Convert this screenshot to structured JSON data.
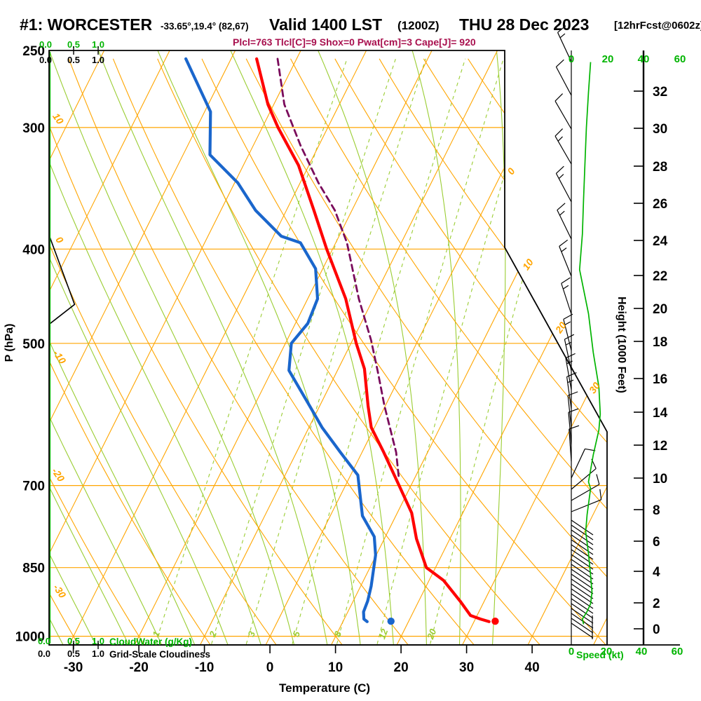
{
  "header": {
    "station": "#1: WORCESTER",
    "coords": "-33.65°,19.4° (82,67)",
    "valid_main": "Valid 1400 LST",
    "valid_z": "(1200Z)",
    "valid_date": "THU 28 Dec 2023",
    "fcst_tag": "[12hrFcst@0602z]",
    "params": "Plcl=763 Tlcl[C]=9 Shox=0 Pwat[cm]=3 Cape[J]= 920"
  },
  "axes": {
    "pressure_label": "P (hPa)",
    "pressure_ticks": [
      250,
      300,
      400,
      500,
      700,
      850,
      1000
    ],
    "temp_label": "Temperature (C)",
    "temp_ticks": [
      -30,
      -20,
      -10,
      0,
      10,
      20,
      30,
      40
    ],
    "height_label": "Height (1000 Feet)",
    "height_ticks": [
      [
        0,
        897
      ],
      [
        2,
        860
      ],
      [
        4,
        815
      ],
      [
        6,
        772
      ],
      [
        8,
        727
      ],
      [
        10,
        682
      ],
      [
        12,
        635
      ],
      [
        14,
        588
      ],
      [
        16,
        540
      ],
      [
        18,
        487
      ],
      [
        20,
        440
      ],
      [
        22,
        393
      ],
      [
        24,
        343
      ],
      [
        26,
        290
      ],
      [
        28,
        237
      ],
      [
        30,
        183
      ],
      [
        32,
        130
      ]
    ],
    "speed_label": "Speed (kt)",
    "speed_scale": [
      "0",
      "20",
      "40",
      "60"
    ],
    "cloud_scale": [
      "0.0",
      "0.5",
      "1.0"
    ],
    "cloudwater_label": "CloudWater (g/Kg)",
    "cloudiness_label": "Grid-Scale Cloudiness"
  },
  "colors": {
    "temperature": "#FF0000",
    "dewpoint": "#1A66CC",
    "parcel": "#7A0B5B",
    "isolines_orange": "#FFA500",
    "adiabat_green": "#9ACD32",
    "bright_green": "#00B400",
    "params_text": "#A8104E",
    "frame": "#000000"
  },
  "chart_data": {
    "type": "skewt_log_p_sounding",
    "pressure_range_hpa": [
      250,
      1035
    ],
    "temp_ticks_c": [
      -30,
      -20,
      -10,
      0,
      10,
      20,
      30,
      40
    ],
    "isotherm_labels_right_c": [
      [
        0,
        733,
        247
      ],
      [
        10,
        757,
        380
      ],
      [
        20,
        804,
        470
      ],
      [
        30,
        852,
        556
      ]
    ],
    "dry_adiabat_labels_left_c": [
      [
        10,
        79,
        172
      ],
      [
        0,
        81,
        345
      ],
      [
        -10,
        81,
        512
      ],
      [
        -20,
        79,
        680
      ],
      [
        -30,
        81,
        846
      ]
    ],
    "mixing_ratio_lines_gkg": [
      1,
      2,
      3,
      5,
      8,
      12,
      20
    ],
    "mixing_ratio_label_x": [
      227,
      308,
      363,
      427,
      486,
      551,
      620
    ],
    "series": [
      {
        "name": "temperature",
        "color": "#FF0000",
        "points_p_t": [
          [
            255,
            -46.1
          ],
          [
            284,
            -40.9
          ],
          [
            300,
            -37.6
          ],
          [
            328,
            -31.6
          ],
          [
            365,
            -25.8
          ],
          [
            400,
            -20.9
          ],
          [
            450,
            -14.2
          ],
          [
            500,
            -9.2
          ],
          [
            531,
            -6.0
          ],
          [
            580,
            -2.6
          ],
          [
            610,
            -0.5
          ],
          [
            647,
            3.3
          ],
          [
            700,
            8.2
          ],
          [
            747,
            12.2
          ],
          [
            794,
            14.9
          ],
          [
            850,
            18.6
          ],
          [
            876,
            22.2
          ],
          [
            920,
            26.3
          ],
          [
            952,
            29.0
          ],
          [
            960,
            30.8
          ],
          [
            966,
            32.3
          ]
        ]
      },
      {
        "name": "dewpoint",
        "color": "#1A66CC",
        "points_p_t": [
          [
            255,
            -56.9
          ],
          [
            289,
            -49.1
          ],
          [
            320,
            -45.9
          ],
          [
            342,
            -39.5
          ],
          [
            365,
            -34.7
          ],
          [
            388,
            -28.8
          ],
          [
            394,
            -25.4
          ],
          [
            419,
            -21.1
          ],
          [
            450,
            -18.5
          ],
          [
            477,
            -18.1
          ],
          [
            500,
            -19.1
          ],
          [
            533,
            -17.4
          ],
          [
            580,
            -11.5
          ],
          [
            610,
            -8.0
          ],
          [
            647,
            -3.3
          ],
          [
            683,
            1.1
          ],
          [
            752,
            4.9
          ],
          [
            790,
            8.3
          ],
          [
            825,
            9.9
          ],
          [
            888,
            11.6
          ],
          [
            920,
            12.2
          ],
          [
            944,
            12.4
          ],
          [
            960,
            13.0
          ],
          [
            966,
            13.7
          ]
        ]
      },
      {
        "name": "parcel_ascent",
        "color": "#7A0B5B",
        "style": "dashed",
        "points_p_t": [
          [
            255,
            -42.9
          ],
          [
            284,
            -38.4
          ],
          [
            313,
            -32.8
          ],
          [
            342,
            -27.2
          ],
          [
            365,
            -22.6
          ],
          [
            394,
            -18.3
          ],
          [
            450,
            -12.2
          ],
          [
            496,
            -7.2
          ],
          [
            534,
            -3.8
          ],
          [
            580,
            -0.1
          ],
          [
            647,
            5.2
          ],
          [
            688,
            7.6
          ]
        ]
      }
    ],
    "surface_markers": [
      {
        "name": "surface-temperature",
        "p": 965,
        "t": 33.2,
        "color": "#FF0000"
      },
      {
        "name": "surface-dewpoint",
        "p": 965,
        "t": 17.3,
        "color": "#1A66CC"
      }
    ],
    "cloudiness_profile_p_frac": [
      [
        387,
        0
      ],
      [
        456,
        0.26
      ],
      [
        478,
        0
      ]
    ],
    "cloudwater_profile_gkg": 0,
    "wind": {
      "speed_kt_by_p": [
        [
          257,
          11
        ],
        [
          276,
          9.8
        ],
        [
          300,
          8.6
        ],
        [
          326,
          7.8
        ],
        [
          355,
          7
        ],
        [
          386,
          6.3
        ],
        [
          420,
          4.7
        ],
        [
          466,
          9.8
        ],
        [
          511,
          12.5
        ],
        [
          554,
          15.7
        ],
        [
          591,
          16.5
        ],
        [
          614,
          15.7
        ],
        [
          651,
          12.5
        ],
        [
          694,
          9.8
        ],
        [
          705,
          11
        ],
        [
          750,
          9
        ],
        [
          781,
          8.2
        ],
        [
          822,
          9.8
        ],
        [
          866,
          11
        ],
        [
          901,
          11.8
        ],
        [
          926,
          11
        ],
        [
          943,
          9
        ],
        [
          960,
          6.3
        ],
        [
          972,
          7
        ]
      ],
      "barbs": [
        {
          "y": 88,
          "a": -25,
          "t": [
            10,
            5
          ]
        },
        {
          "y": 136,
          "a": -28,
          "t": [
            10
          ]
        },
        {
          "y": 184,
          "a": -30,
          "t": [
            10
          ]
        },
        {
          "y": 234,
          "a": -30,
          "t": [
            10,
            5
          ]
        },
        {
          "y": 288,
          "a": -28,
          "t": [
            10,
            5
          ]
        },
        {
          "y": 341,
          "a": -26,
          "t": [
            10,
            5
          ]
        },
        {
          "y": 394,
          "a": -22,
          "t": [
            10,
            5
          ]
        },
        {
          "y": 448,
          "a": -18,
          "t": [
            10,
            5
          ]
        },
        {
          "y": 500,
          "a": -14,
          "t": [
            10,
            5
          ]
        },
        {
          "y": 529,
          "a": -12,
          "t": [
            10,
            5
          ]
        },
        {
          "y": 556,
          "a": -10,
          "t": [
            10,
            5
          ]
        },
        {
          "y": 583,
          "a": -8,
          "t": [
            10,
            5
          ]
        },
        {
          "y": 610,
          "a": -6,
          "t": [
            10
          ]
        },
        {
          "y": 634,
          "a": -5,
          "t": [
            10
          ]
        },
        {
          "y": 658,
          "a": -4,
          "t": [
            10
          ]
        },
        {
          "y": 682,
          "a": 25,
          "t": [
            10
          ]
        },
        {
          "y": 698,
          "a": 50,
          "t": [
            10
          ]
        },
        {
          "y": 714,
          "a": 60,
          "t": [
            10
          ]
        },
        {
          "y": 730,
          "a": 68,
          "t": [
            10
          ]
        }
      ],
      "hatch_band_y": [
        742,
        893
      ]
    }
  }
}
